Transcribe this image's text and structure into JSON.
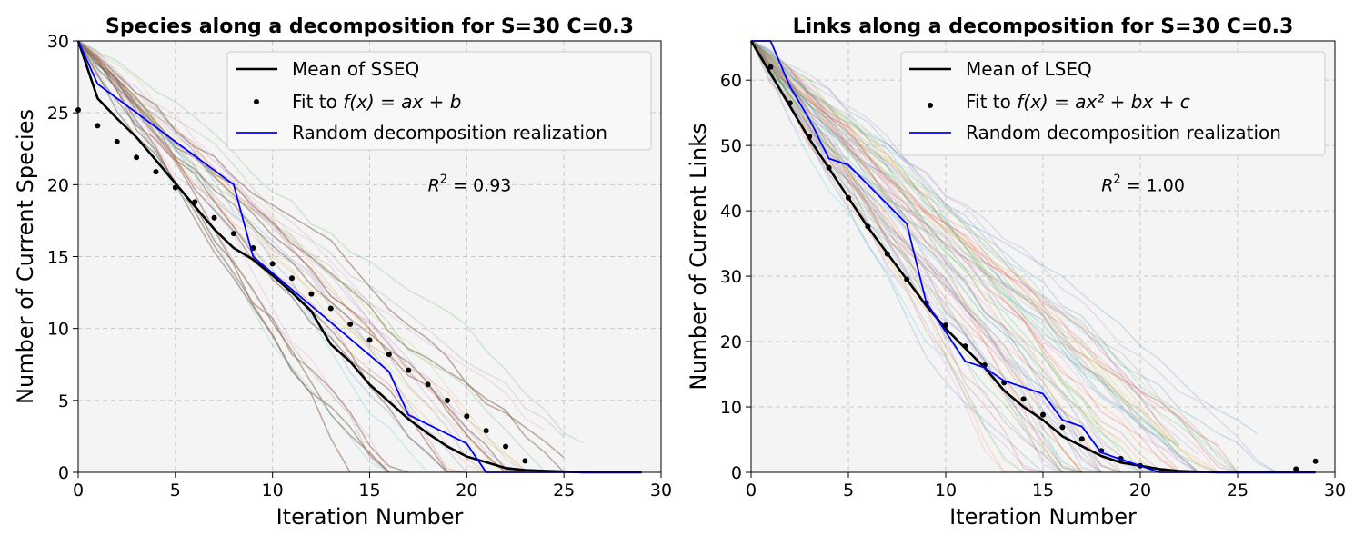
{
  "chart_data": [
    {
      "type": "line",
      "title": "Species along a decomposition for S=30 C=0.3",
      "xlabel": "Iteration Number",
      "ylabel": "Number of Current Species",
      "xlim": [
        0,
        30
      ],
      "ylim": [
        0,
        30
      ],
      "xticks": [
        "0",
        "5",
        "10",
        "15",
        "20",
        "25",
        "30"
      ],
      "yticks": [
        "0",
        "5",
        "10",
        "15",
        "20",
        "25",
        "30"
      ],
      "grid": true,
      "legend_placement": "top-right",
      "legend": [
        "Mean of SSEQ",
        "Fit to ",
        "Random decomposition realization"
      ],
      "legend_math": "f(x) = ax + b",
      "annotation": {
        "prefix": "R",
        "sup": "2",
        "text": " = 0.93",
        "x": 18,
        "y": 20
      },
      "series": [
        {
          "name": "Mean of SSEQ",
          "style": "line",
          "color": "#000000",
          "x": [
            0,
            1,
            2,
            3,
            4,
            5,
            6,
            7,
            8,
            9,
            10,
            11,
            12,
            13,
            14,
            15,
            16,
            17,
            18,
            19,
            20,
            21,
            22,
            23,
            24,
            25,
            26,
            27,
            28,
            29
          ],
          "y": [
            30,
            26,
            24.6,
            23.3,
            21.7,
            20.1,
            18.5,
            16.9,
            15.6,
            14.8,
            13.7,
            12.5,
            11.2,
            8.9,
            7.7,
            6.1,
            4.9,
            3.7,
            2.7,
            1.8,
            1.1,
            0.7,
            0.3,
            0.15,
            0.1,
            0.05,
            0,
            0,
            0,
            0
          ]
        },
        {
          "name": "Fit to f(x) = ax + b",
          "style": "points",
          "color": "#000000",
          "x": [
            0,
            1,
            2,
            3,
            4,
            5,
            6,
            7,
            8,
            9,
            10,
            11,
            12,
            13,
            14,
            15,
            16,
            17,
            18,
            19,
            20,
            21,
            22,
            23
          ],
          "y": [
            25.2,
            24.1,
            23,
            21.9,
            20.9,
            19.8,
            18.8,
            17.7,
            16.6,
            15.6,
            14.5,
            13.5,
            12.4,
            11.4,
            10.3,
            9.2,
            8.2,
            7.1,
            6.1,
            5,
            3.9,
            2.9,
            1.8,
            0.8
          ]
        },
        {
          "name": "Random decomposition realization",
          "style": "line",
          "color": "#0000ff",
          "x": [
            0,
            1,
            8,
            9,
            16,
            17,
            20,
            21,
            29
          ],
          "y": [
            30,
            27,
            20,
            15,
            7,
            4,
            2,
            0,
            0
          ]
        }
      ],
      "background_series_count": 30
    },
    {
      "type": "line",
      "title": "Links along a decomposition for S=30 C=0.3",
      "xlabel": "Iteration Number",
      "ylabel": "Number of Current Links",
      "xlim": [
        0,
        30
      ],
      "ylim": [
        0,
        66
      ],
      "xticks": [
        "0",
        "5",
        "10",
        "15",
        "20",
        "25",
        "30"
      ],
      "yticks": [
        "0",
        "10",
        "20",
        "30",
        "40",
        "50",
        "60"
      ],
      "grid": true,
      "legend_placement": "top-right",
      "legend": [
        "Mean of LSEQ",
        "Fit to ",
        "Random decomposition realization"
      ],
      "legend_math": "f(x) = ax² + bx + c",
      "annotation": {
        "prefix": "R",
        "sup": "2",
        "text": " = 1.00",
        "x": 18,
        "y": 44
      },
      "series": [
        {
          "name": "Mean of LSEQ",
          "style": "line",
          "color": "#000000",
          "x": [
            0,
            1,
            2,
            3,
            4,
            5,
            6,
            7,
            8,
            9,
            10,
            11,
            12,
            13,
            14,
            15,
            16,
            17,
            18,
            19,
            20,
            21,
            22,
            23,
            24,
            25,
            26,
            27,
            28,
            29
          ],
          "y": [
            66,
            61,
            56,
            51,
            46.5,
            42,
            37.5,
            33.5,
            29.5,
            25.5,
            22,
            19,
            16,
            12.5,
            10,
            8,
            5.5,
            4,
            2.5,
            1.5,
            1,
            0.5,
            0.2,
            0.1,
            0,
            0,
            0,
            0,
            0,
            0
          ]
        },
        {
          "name": "Fit to f(x) = ax² + bx + c",
          "style": "points",
          "color": "#000000",
          "x": [
            1,
            2,
            3,
            4,
            5,
            6,
            7,
            8,
            9,
            10,
            11,
            12,
            13,
            14,
            15,
            16,
            17,
            18,
            19,
            20,
            28,
            29
          ],
          "y": [
            62,
            56.5,
            51.4,
            46.6,
            42,
            37.6,
            33.4,
            29.5,
            25.9,
            22.5,
            19.3,
            16.4,
            13.7,
            11.2,
            8.8,
            6.9,
            5.1,
            3.3,
            2.1,
            1,
            0.5,
            1.7
          ]
        },
        {
          "name": "Random decomposition realization",
          "style": "line",
          "color": "#0000ff",
          "x": [
            0,
            1,
            2,
            3,
            4,
            5,
            8,
            9,
            11,
            12,
            13,
            15,
            16,
            17,
            18,
            19,
            20,
            21,
            29
          ],
          "y": [
            66,
            66,
            59,
            54,
            48,
            47,
            38,
            26,
            17,
            16,
            14,
            12,
            8,
            7,
            3,
            2,
            1,
            0,
            0
          ]
        }
      ],
      "background_series_count": 70
    }
  ]
}
